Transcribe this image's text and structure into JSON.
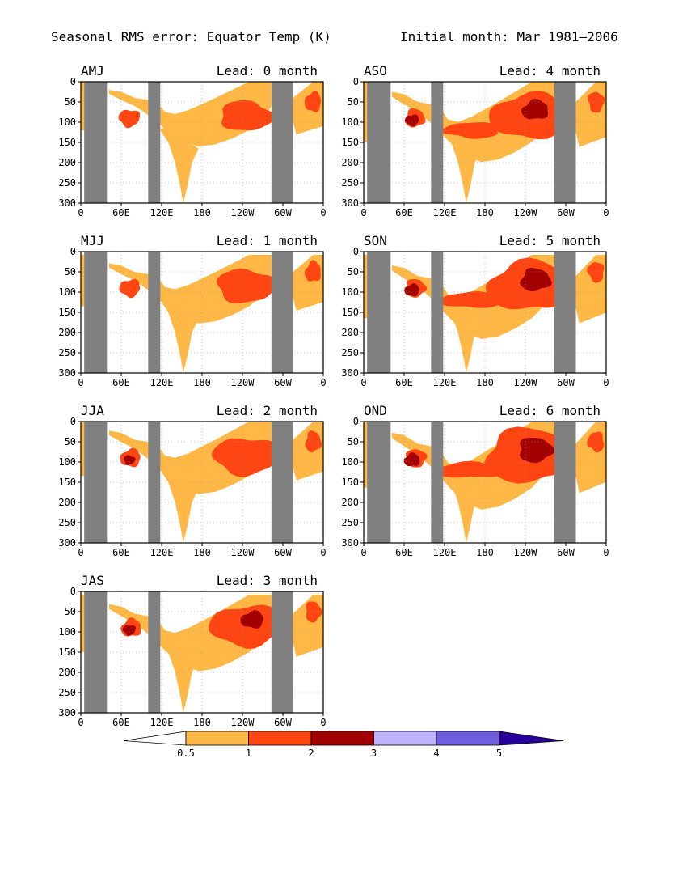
{
  "title": {
    "left": "Seasonal RMS error: Equator Temp (K)",
    "right": "Initial month: Mar 1981—2006"
  },
  "colors": {
    "levels": [
      "#ffffff",
      "#ffb845",
      "#ff4612",
      "#a30000",
      "#bfb2ff",
      "#705ee0",
      "#27009a"
    ],
    "land": "#808080",
    "grid": "#9a9a9a"
  },
  "chart_data": [
    {
      "type": "heatmap",
      "season": "AMJ",
      "lead_label": "Lead: 0 month",
      "lead": 0,
      "xticks": [
        "0",
        "60E",
        "120E",
        "180",
        "120W",
        "60W",
        "0"
      ],
      "yticks": [
        "0",
        "50",
        "100",
        "150",
        "200",
        "250",
        "300"
      ],
      "x_unit": "longitude_deg_east",
      "xlim": [
        0,
        360
      ],
      "y_unit": "depth_m",
      "ylim": [
        0,
        300
      ]
    },
    {
      "type": "heatmap",
      "season": "MJJ",
      "lead_label": "Lead: 1 month",
      "lead": 1,
      "xticks": [
        "0",
        "60E",
        "120E",
        "180",
        "120W",
        "60W",
        "0"
      ],
      "yticks": [
        "0",
        "50",
        "100",
        "150",
        "200",
        "250",
        "300"
      ],
      "xlim": [
        0,
        360
      ],
      "ylim": [
        0,
        300
      ]
    },
    {
      "type": "heatmap",
      "season": "JJA",
      "lead_label": "Lead: 2 month",
      "lead": 2,
      "xticks": [
        "0",
        "60E",
        "120E",
        "180",
        "120W",
        "60W",
        "0"
      ],
      "yticks": [
        "0",
        "50",
        "100",
        "150",
        "200",
        "250",
        "300"
      ],
      "xlim": [
        0,
        360
      ],
      "ylim": [
        0,
        300
      ]
    },
    {
      "type": "heatmap",
      "season": "JAS",
      "lead_label": "Lead: 3 month",
      "lead": 3,
      "xticks": [
        "0",
        "60E",
        "120E",
        "180",
        "120W",
        "60W",
        "0"
      ],
      "yticks": [
        "0",
        "50",
        "100",
        "150",
        "200",
        "250",
        "300"
      ],
      "xlim": [
        0,
        360
      ],
      "ylim": [
        0,
        300
      ]
    },
    {
      "type": "heatmap",
      "season": "ASO",
      "lead_label": "Lead: 4 month",
      "lead": 4,
      "xticks": [
        "0",
        "60E",
        "120E",
        "180",
        "120W",
        "60W",
        "0"
      ],
      "yticks": [
        "0",
        "50",
        "100",
        "150",
        "200",
        "250",
        "300"
      ],
      "xlim": [
        0,
        360
      ],
      "ylim": [
        0,
        300
      ]
    },
    {
      "type": "heatmap",
      "season": "SON",
      "lead_label": "Lead: 5 month",
      "lead": 5,
      "xticks": [
        "0",
        "60E",
        "120E",
        "180",
        "120W",
        "60W",
        "0"
      ],
      "yticks": [
        "0",
        "50",
        "100",
        "150",
        "200",
        "250",
        "300"
      ],
      "xlim": [
        0,
        360
      ],
      "ylim": [
        0,
        300
      ]
    },
    {
      "type": "heatmap",
      "season": "OND",
      "lead_label": "Lead: 6 month",
      "lead": 6,
      "xticks": [
        "0",
        "60E",
        "120E",
        "180",
        "120W",
        "60W",
        "0"
      ],
      "yticks": [
        "0",
        "50",
        "100",
        "150",
        "200",
        "250",
        "300"
      ],
      "xlim": [
        0,
        360
      ],
      "ylim": [
        0,
        300
      ]
    }
  ],
  "colorbar": {
    "labels": [
      "0.5",
      "1",
      "2",
      "3",
      "4",
      "5"
    ],
    "levels": [
      0.5,
      1,
      2,
      3,
      4,
      5
    ]
  },
  "land_bands_lon": [
    [
      5,
      40
    ],
    [
      100,
      118
    ],
    [
      283,
      315
    ]
  ]
}
